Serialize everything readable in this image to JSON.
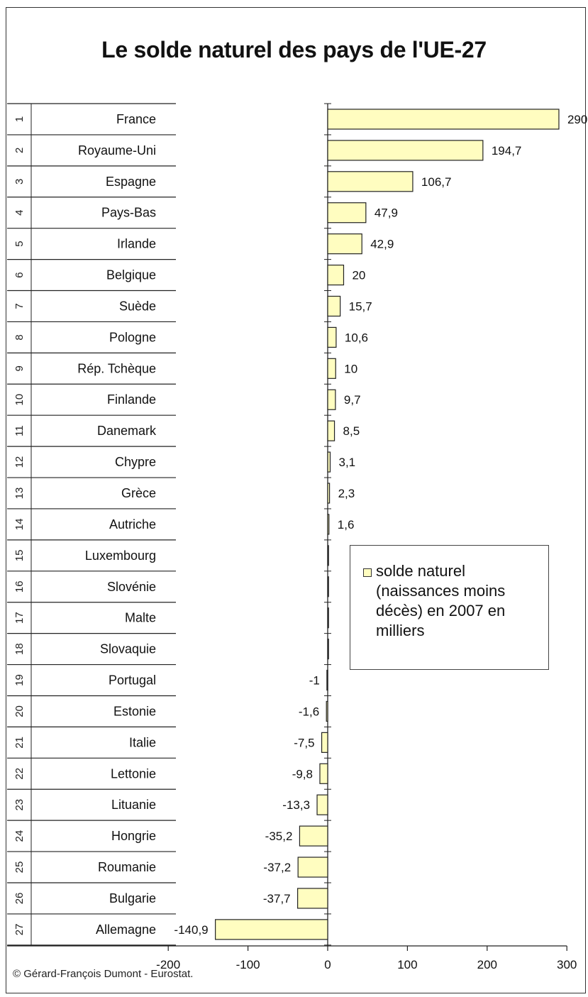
{
  "chart_data": {
    "type": "bar",
    "orientation": "horizontal",
    "title": "Le solde naturel des pays de l'UE-27",
    "ranks": [
      "1",
      "2",
      "3",
      "4",
      "5",
      "6",
      "7",
      "8",
      "9",
      "10",
      "11",
      "12",
      "13",
      "14",
      "15",
      "16",
      "17",
      "18",
      "19",
      "20",
      "21",
      "22",
      "23",
      "24",
      "25",
      "26",
      "27"
    ],
    "categories": [
      "France",
      "Royaume-Uni",
      "Espagne",
      "Pays-Bas",
      "Irlande",
      "Belgique",
      "Suède",
      "Pologne",
      "Rép. Tchèque",
      "Finlande",
      "Danemark",
      "Chypre",
      "Grèce",
      "Autriche",
      "Luxembourg",
      "Slovénie",
      "Malte",
      "Slovaquie",
      "Portugal",
      "Estonie",
      "Italie",
      "Lettonie",
      "Lituanie",
      "Hongrie",
      "Roumanie",
      "Bulgarie",
      "Allemagne"
    ],
    "series": [
      {
        "name": "solde naturel (naissances moins décès) en 2007 en milliers",
        "values": [
          290,
          194.7,
          106.7,
          47.9,
          42.9,
          20,
          15.7,
          10.6,
          10,
          9.7,
          8.5,
          3.1,
          2.3,
          1.6,
          1,
          0.5,
          0.3,
          0.1,
          -1,
          -1.6,
          -7.5,
          -9.8,
          -13.3,
          -35.2,
          -37.2,
          -37.7,
          -140.9
        ],
        "labels": [
          "290",
          "194,7",
          "106,7",
          "47,9",
          "42,9",
          "20",
          "15,7",
          "10,6",
          "10",
          "9,7",
          "8,5",
          "3,1",
          "2,3",
          "1,6",
          "",
          "",
          "",
          "",
          "-1",
          "-1,6",
          "-7,5",
          "-9,8",
          "-13,3",
          "-35,2",
          "-37,2",
          "-37,7",
          "-140,9"
        ]
      }
    ],
    "xlim": [
      -200,
      300
    ],
    "xticks": [
      -200,
      -100,
      0,
      100,
      200,
      300
    ],
    "xtick_labels": [
      "-200",
      "-100",
      "0",
      "100",
      "200",
      "300"
    ],
    "legend_position": "right-middle",
    "bar_color": "#fffdc0",
    "grid": false
  },
  "legend": {
    "label": "solde naturel (naissances moins décès) en 2007 en milliers"
  },
  "footer": {
    "copyright": "© Gérard-François Dumont - Eurostat."
  }
}
